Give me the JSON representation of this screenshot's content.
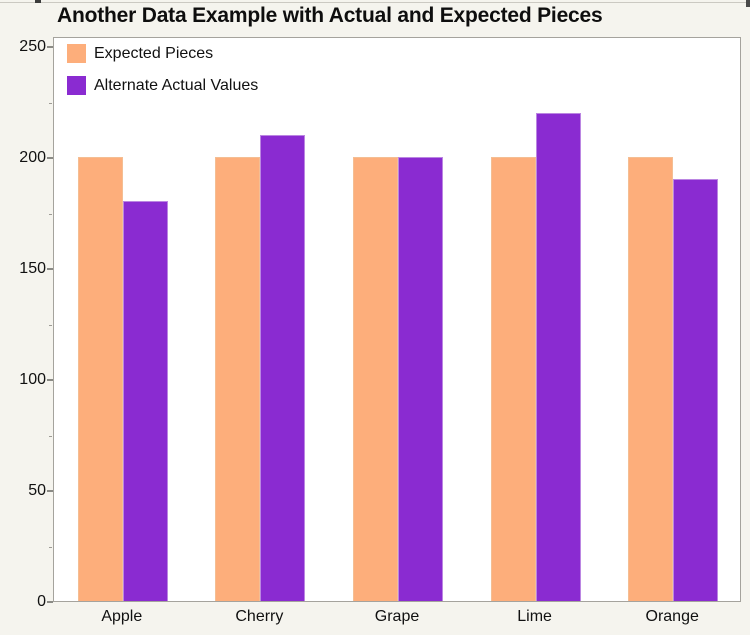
{
  "chart_data": {
    "type": "bar",
    "title": "Another Data Example with Actual and Expected Pieces",
    "categories": [
      "Apple",
      "Cherry",
      "Grape",
      "Lime",
      "Orange"
    ],
    "series": [
      {
        "name": "Expected Pieces",
        "color": "#FDAE7B",
        "border": "#F4BE93",
        "values": [
          200,
          200,
          200,
          200,
          200
        ]
      },
      {
        "name": "Alternate Actual Values",
        "color": "#8A2BD1",
        "border": "#BB86E2",
        "values": [
          180,
          210,
          200,
          220,
          190
        ]
      }
    ],
    "ylim": [
      0,
      250
    ],
    "yticks": [
      0,
      50,
      100,
      150,
      200,
      250
    ],
    "minor_yticks": [
      25,
      75,
      125,
      175,
      225
    ],
    "xlabel": "",
    "ylabel": "",
    "grid": false,
    "legend_position": "inside top-left"
  },
  "colors": {
    "page_background": "#F5F4EE",
    "plot_background": "#FFFFFF",
    "plot_border": "#A5A39D",
    "tick_color": "#8A8A85",
    "text_color": "#111111"
  }
}
